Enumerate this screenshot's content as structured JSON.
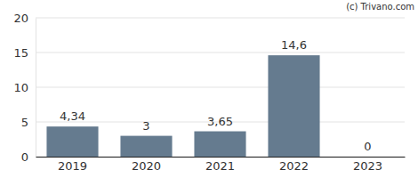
{
  "chart_data": {
    "type": "bar",
    "annotation": "(c) Trivano.com",
    "categories": [
      "2019",
      "2020",
      "2021",
      "2022",
      "2023"
    ],
    "values": [
      4.34,
      3,
      3.65,
      14.6,
      0
    ],
    "value_labels": [
      "4,34",
      "3",
      "3,65",
      "14,6",
      "0"
    ],
    "data_labels": true,
    "color": "#657b8f",
    "ylim": [
      0,
      20
    ],
    "yticks": [
      0,
      5,
      10,
      15,
      20
    ],
    "grid": true
  }
}
